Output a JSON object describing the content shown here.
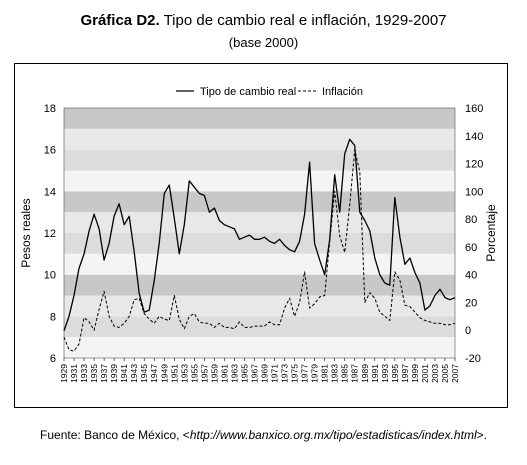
{
  "title": {
    "bold": "Gráfica D2.",
    "text": " Tipo de cambio real e inflación, 1929-2007",
    "sub": "(base 2000)"
  },
  "source": {
    "prefix": "Fuente: Banco de México, <",
    "url": "http://www.banxico.org.mx/tipo/estadisticas/index.html",
    "suffix": ">."
  },
  "chart_data": {
    "type": "line",
    "ylabel_left": "Pesos reales",
    "ylabel_right": "Porcentaje",
    "ylim_left": [
      6,
      18
    ],
    "yticks_left": [
      6,
      8,
      10,
      12,
      14,
      16,
      18
    ],
    "ylim_right": [
      -20,
      160
    ],
    "yticks_right": [
      -20,
      0,
      20,
      40,
      60,
      80,
      100,
      120,
      140,
      160
    ],
    "xlim": [
      1929,
      2007
    ],
    "xticks": [
      1929,
      1931,
      1933,
      1935,
      1937,
      1939,
      1941,
      1943,
      1945,
      1947,
      1949,
      1951,
      1953,
      1955,
      1957,
      1959,
      1961,
      1963,
      1965,
      1967,
      1969,
      1971,
      1973,
      1975,
      1977,
      1979,
      1981,
      1983,
      1985,
      1987,
      1989,
      1991,
      1993,
      1995,
      1997,
      1999,
      2001,
      2003,
      2005,
      2007
    ],
    "grid": "alternating horizontal bands",
    "legend_position": "top-center",
    "series": [
      {
        "name": "Tipo de cambio real",
        "axis": "left",
        "style": "solid",
        "x": [
          1929,
          1930,
          1931,
          1932,
          1933,
          1934,
          1935,
          1936,
          1937,
          1938,
          1939,
          1940,
          1941,
          1942,
          1943,
          1944,
          1945,
          1946,
          1947,
          1948,
          1949,
          1950,
          1951,
          1952,
          1953,
          1954,
          1955,
          1956,
          1957,
          1958,
          1959,
          1960,
          1961,
          1962,
          1963,
          1964,
          1965,
          1966,
          1967,
          1968,
          1969,
          1970,
          1971,
          1972,
          1973,
          1974,
          1975,
          1976,
          1977,
          1978,
          1979,
          1980,
          1981,
          1982,
          1983,
          1984,
          1985,
          1986,
          1987,
          1988,
          1989,
          1990,
          1991,
          1992,
          1993,
          1994,
          1995,
          1996,
          1997,
          1998,
          1999,
          2000,
          2001,
          2002,
          2003,
          2004,
          2005,
          2006,
          2007
        ],
        "values": [
          7.3,
          8.0,
          9.0,
          10.3,
          11.0,
          12.1,
          12.9,
          12.2,
          10.7,
          11.5,
          12.8,
          13.4,
          12.4,
          12.8,
          11.1,
          9.1,
          8.2,
          8.3,
          9.7,
          11.5,
          13.9,
          14.3,
          12.7,
          11.0,
          12.4,
          14.5,
          14.2,
          13.9,
          13.8,
          13.0,
          13.2,
          12.6,
          12.4,
          12.3,
          12.2,
          11.7,
          11.8,
          11.9,
          11.7,
          11.7,
          11.8,
          11.6,
          11.5,
          11.7,
          11.4,
          11.2,
          11.1,
          11.6,
          12.9,
          15.4,
          11.5,
          10.7,
          10.0,
          11.7,
          14.8,
          13.0,
          15.8,
          16.5,
          16.2,
          13.0,
          12.6,
          12.1,
          10.8,
          10.0,
          9.6,
          9.5,
          13.7,
          11.8,
          10.5,
          10.8,
          10.1,
          9.6,
          8.3,
          8.5,
          9.0,
          9.3,
          8.9,
          8.8,
          8.9
        ]
      },
      {
        "name": "Inflación",
        "axis": "right",
        "style": "dashed",
        "x": [
          1929,
          1930,
          1931,
          1932,
          1933,
          1934,
          1935,
          1936,
          1937,
          1938,
          1939,
          1940,
          1941,
          1942,
          1943,
          1944,
          1945,
          1946,
          1947,
          1948,
          1949,
          1950,
          1951,
          1952,
          1953,
          1954,
          1955,
          1956,
          1957,
          1958,
          1959,
          1960,
          1961,
          1962,
          1963,
          1964,
          1965,
          1966,
          1967,
          1968,
          1969,
          1970,
          1971,
          1972,
          1973,
          1974,
          1975,
          1976,
          1977,
          1978,
          1979,
          1980,
          1981,
          1982,
          1983,
          1984,
          1985,
          1986,
          1987,
          1988,
          1989,
          1990,
          1991,
          1992,
          1993,
          1994,
          1995,
          1996,
          1997,
          1998,
          1999,
          2000,
          2001,
          2002,
          2003,
          2004,
          2005,
          2006,
          2007
        ],
        "values": [
          -5,
          -14,
          -15,
          -10,
          9,
          6,
          0,
          15,
          28,
          10,
          3,
          2,
          5,
          10,
          22,
          23,
          12,
          8,
          5,
          10,
          8,
          7,
          25,
          8,
          1,
          10,
          12,
          6,
          5,
          5,
          2,
          5,
          2,
          2,
          1,
          6,
          2,
          2,
          3,
          3,
          3,
          6,
          4,
          4,
          16,
          23,
          10,
          20,
          42,
          16,
          19,
          24,
          25,
          64,
          100,
          68,
          56,
          90,
          130,
          114,
          20,
          27,
          23,
          13,
          10,
          7,
          42,
          36,
          18,
          17,
          13,
          9,
          7,
          6,
          5,
          5,
          4,
          4,
          5
        ]
      }
    ]
  }
}
